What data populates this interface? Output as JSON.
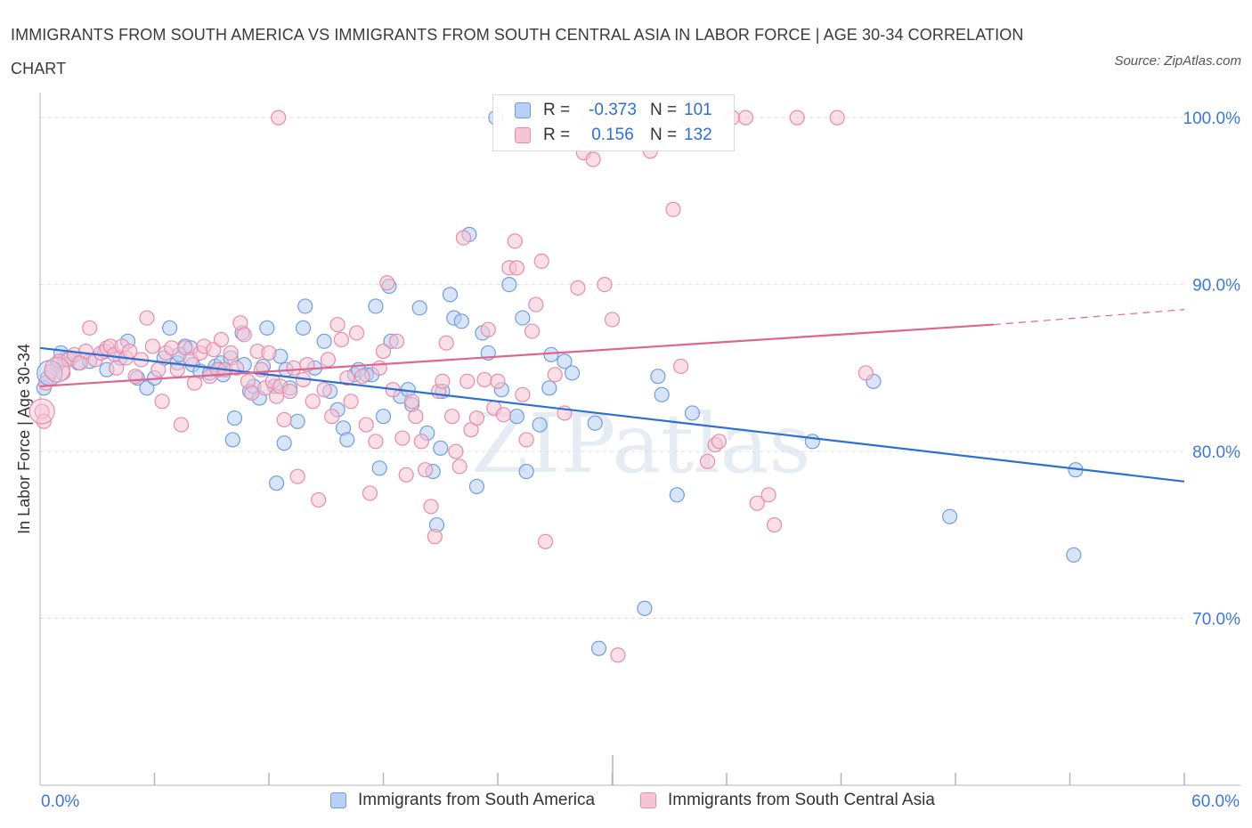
{
  "title": "IMMIGRANTS FROM SOUTH AMERICA VS IMMIGRANTS FROM SOUTH CENTRAL ASIA IN LABOR FORCE | AGE 30-34 CORRELATION CHART",
  "source": "Source: ZipAtlas.com",
  "watermark": "ZIPatlas",
  "colors": {
    "blue_fill": "#b8d0f3",
    "blue_stroke": "#6f9de0",
    "blue_line": "#2e6fd3",
    "pink_fill": "#f6c4d4",
    "pink_stroke": "#e98aaa",
    "pink_line": "#e0648f",
    "axis_text": "#3b78d8",
    "grid": "#dcdcdc"
  },
  "stats_box": {
    "rows": [
      {
        "r_label": "R =",
        "r_value": "-0.373",
        "n_label": "N =",
        "n_value": "101",
        "color": "blue"
      },
      {
        "r_label": "R =",
        "r_value": "0.156",
        "n_label": "N =",
        "n_value": "132",
        "color": "pink"
      }
    ]
  },
  "chart_data": {
    "type": "scatter",
    "title": "IMMIGRANTS FROM SOUTH AMERICA VS IMMIGRANTS FROM SOUTH CENTRAL ASIA IN LABOR FORCE | AGE 30-34 CORRELATION CHART",
    "xlabel": "",
    "ylabel": "In Labor Force | Age 30-34",
    "xlim": [
      0,
      60
    ],
    "ylim": [
      60,
      101.5
    ],
    "x_tick_labels": [
      "0.0%",
      "60.0%"
    ],
    "y_ticks": [
      70,
      80,
      90,
      100
    ],
    "y_tick_labels": [
      "70.0%",
      "80.0%",
      "90.0%",
      "100.0%"
    ],
    "grid": true,
    "legend_position": "bottom",
    "series": [
      {
        "name": "Immigrants from South America",
        "color": "blue",
        "r": -0.373,
        "n": 101,
        "trend": {
          "x0": 0,
          "y0": 86.2,
          "x1": 60,
          "y1": 78.2
        },
        "points": [
          [
            0.4,
            84.4
          ],
          [
            0.9,
            85.2
          ],
          [
            1.3,
            85.5
          ],
          [
            1.6,
            85.6
          ],
          [
            2.0,
            85.3
          ],
          [
            2.6,
            85.4
          ],
          [
            3.4,
            86.0
          ],
          [
            3.5,
            84.9
          ],
          [
            4.2,
            85.6
          ],
          [
            4.6,
            86.6
          ],
          [
            5.1,
            84.4
          ],
          [
            5.6,
            83.8
          ],
          [
            6.0,
            84.4
          ],
          [
            6.5,
            85.6
          ],
          [
            6.8,
            87.4
          ],
          [
            7.2,
            85.3
          ],
          [
            7.6,
            86.3
          ],
          [
            7.9,
            86.2
          ],
          [
            8.0,
            85.2
          ],
          [
            8.4,
            84.8
          ],
          [
            8.9,
            84.7
          ],
          [
            9.2,
            85.1
          ],
          [
            9.5,
            85.3
          ],
          [
            9.4,
            84.9
          ],
          [
            9.6,
            84.6
          ],
          [
            10.0,
            85.6
          ],
          [
            10.1,
            80.7
          ],
          [
            10.2,
            82.0
          ],
          [
            10.6,
            87.1
          ],
          [
            11.0,
            83.6
          ],
          [
            11.2,
            83.9
          ],
          [
            11.5,
            83.2
          ],
          [
            11.7,
            85.1
          ],
          [
            11.9,
            87.4
          ],
          [
            12.3,
            83.9
          ],
          [
            12.4,
            78.1
          ],
          [
            12.6,
            85.7
          ],
          [
            12.9,
            84.9
          ],
          [
            12.8,
            80.5
          ],
          [
            13.1,
            83.8
          ],
          [
            13.5,
            81.8
          ],
          [
            13.8,
            87.4
          ],
          [
            13.9,
            88.7
          ],
          [
            14.4,
            85.0
          ],
          [
            14.9,
            86.6
          ],
          [
            15.2,
            83.6
          ],
          [
            15.6,
            82.5
          ],
          [
            15.9,
            81.4
          ],
          [
            16.1,
            80.7
          ],
          [
            16.5,
            84.6
          ],
          [
            16.7,
            84.9
          ],
          [
            17.1,
            84.6
          ],
          [
            17.4,
            84.6
          ],
          [
            17.6,
            88.7
          ],
          [
            17.8,
            79.0
          ],
          [
            18.0,
            82.1
          ],
          [
            18.3,
            89.9
          ],
          [
            18.4,
            86.6
          ],
          [
            18.9,
            83.3
          ],
          [
            19.3,
            83.7
          ],
          [
            19.5,
            82.8
          ],
          [
            19.9,
            88.6
          ],
          [
            20.3,
            81.1
          ],
          [
            20.6,
            78.8
          ],
          [
            20.8,
            75.6
          ],
          [
            21.0,
            80.2
          ],
          [
            21.1,
            83.6
          ],
          [
            21.5,
            89.4
          ],
          [
            21.7,
            88.0
          ],
          [
            22.5,
            93.0
          ],
          [
            22.9,
            77.9
          ],
          [
            23.2,
            87.1
          ],
          [
            23.5,
            85.9
          ],
          [
            23.9,
            100.0
          ],
          [
            24.2,
            83.7
          ],
          [
            24.6,
            90.0
          ],
          [
            25.0,
            82.1
          ],
          [
            25.3,
            88.0
          ],
          [
            25.5,
            78.8
          ],
          [
            26.2,
            81.6
          ],
          [
            26.7,
            83.8
          ],
          [
            26.8,
            85.8
          ],
          [
            27.5,
            85.4
          ],
          [
            27.9,
            84.7
          ],
          [
            29.1,
            81.7
          ],
          [
            29.3,
            68.2
          ],
          [
            31.7,
            70.6
          ],
          [
            32.4,
            84.5
          ],
          [
            32.6,
            83.4
          ],
          [
            33.4,
            77.4
          ],
          [
            34.2,
            82.3
          ],
          [
            40.5,
            80.6
          ],
          [
            43.7,
            84.2
          ],
          [
            47.7,
            76.1
          ],
          [
            54.3,
            78.9
          ],
          [
            54.2,
            73.8
          ],
          [
            0.2,
            83.8
          ],
          [
            1.1,
            85.9
          ],
          [
            7.3,
            85.8
          ],
          [
            10.7,
            85.2
          ],
          [
            22.1,
            87.8
          ]
        ]
      },
      {
        "name": "Immigrants from South Central Asia",
        "color": "pink",
        "r": 0.156,
        "n": 132,
        "trend": {
          "x0": 0,
          "y0": 83.9,
          "x1": 50,
          "y1": 87.6
        },
        "trend_dashed": {
          "x0": 50,
          "y0": 87.6,
          "x1": 60,
          "y1": 88.5
        },
        "points": [
          [
            0.1,
            82.4
          ],
          [
            0.2,
            81.8
          ],
          [
            0.3,
            84.1
          ],
          [
            0.6,
            84.8
          ],
          [
            1.0,
            85.4
          ],
          [
            1.2,
            84.7
          ],
          [
            1.5,
            85.5
          ],
          [
            1.8,
            85.8
          ],
          [
            2.1,
            85.3
          ],
          [
            2.4,
            86.0
          ],
          [
            2.6,
            87.4
          ],
          [
            2.9,
            85.5
          ],
          [
            3.2,
            85.9
          ],
          [
            3.5,
            86.2
          ],
          [
            3.7,
            86.3
          ],
          [
            3.9,
            85.8
          ],
          [
            4.0,
            85.0
          ],
          [
            4.3,
            86.3
          ],
          [
            4.5,
            85.6
          ],
          [
            4.7,
            86.0
          ],
          [
            5.0,
            84.5
          ],
          [
            5.3,
            85.5
          ],
          [
            5.6,
            88.0
          ],
          [
            5.9,
            86.3
          ],
          [
            6.2,
            84.9
          ],
          [
            6.4,
            83.0
          ],
          [
            6.6,
            85.9
          ],
          [
            6.9,
            86.2
          ],
          [
            7.2,
            84.9
          ],
          [
            7.4,
            81.6
          ],
          [
            7.6,
            86.2
          ],
          [
            7.9,
            85.5
          ],
          [
            8.1,
            84.1
          ],
          [
            8.4,
            85.9
          ],
          [
            8.6,
            86.3
          ],
          [
            8.9,
            84.5
          ],
          [
            9.1,
            86.1
          ],
          [
            9.3,
            84.9
          ],
          [
            9.5,
            86.7
          ],
          [
            9.7,
            84.9
          ],
          [
            10.0,
            85.9
          ],
          [
            10.3,
            85.0
          ],
          [
            10.5,
            87.7
          ],
          [
            10.7,
            87.0
          ],
          [
            10.9,
            84.2
          ],
          [
            11.1,
            83.5
          ],
          [
            11.4,
            86.0
          ],
          [
            11.6,
            84.9
          ],
          [
            11.8,
            83.8
          ],
          [
            12.0,
            85.9
          ],
          [
            12.2,
            84.2
          ],
          [
            12.4,
            83.3
          ],
          [
            12.6,
            83.9
          ],
          [
            12.8,
            81.9
          ],
          [
            13.1,
            83.6
          ],
          [
            13.3,
            85.0
          ],
          [
            13.5,
            78.5
          ],
          [
            13.8,
            84.3
          ],
          [
            14.0,
            85.2
          ],
          [
            14.3,
            83.0
          ],
          [
            14.6,
            77.1
          ],
          [
            14.9,
            83.7
          ],
          [
            15.1,
            85.5
          ],
          [
            15.3,
            82.1
          ],
          [
            15.6,
            87.6
          ],
          [
            15.8,
            86.7
          ],
          [
            16.1,
            84.4
          ],
          [
            16.3,
            83.0
          ],
          [
            16.6,
            87.1
          ],
          [
            16.9,
            84.5
          ],
          [
            17.1,
            81.6
          ],
          [
            17.3,
            77.5
          ],
          [
            17.6,
            80.6
          ],
          [
            17.8,
            85.0
          ],
          [
            18.0,
            86.0
          ],
          [
            18.2,
            90.1
          ],
          [
            18.5,
            83.7
          ],
          [
            18.7,
            86.6
          ],
          [
            19.0,
            80.8
          ],
          [
            19.2,
            78.6
          ],
          [
            19.5,
            83.0
          ],
          [
            19.7,
            82.1
          ],
          [
            20.0,
            80.6
          ],
          [
            20.2,
            78.9
          ],
          [
            20.5,
            76.7
          ],
          [
            20.7,
            74.9
          ],
          [
            20.9,
            83.6
          ],
          [
            21.1,
            84.2
          ],
          [
            21.3,
            86.5
          ],
          [
            21.6,
            82.1
          ],
          [
            21.8,
            80.0
          ],
          [
            22.0,
            79.1
          ],
          [
            22.2,
            92.8
          ],
          [
            22.4,
            84.2
          ],
          [
            22.6,
            81.3
          ],
          [
            22.9,
            82.0
          ],
          [
            23.3,
            84.3
          ],
          [
            23.5,
            87.3
          ],
          [
            23.8,
            82.6
          ],
          [
            24.0,
            84.2
          ],
          [
            24.3,
            82.2
          ],
          [
            24.6,
            91.0
          ],
          [
            24.9,
            92.6
          ],
          [
            25.0,
            91.0
          ],
          [
            25.3,
            83.4
          ],
          [
            25.5,
            80.7
          ],
          [
            25.8,
            87.2
          ],
          [
            26.0,
            88.8
          ],
          [
            26.3,
            91.4
          ],
          [
            26.5,
            74.6
          ],
          [
            27.0,
            84.6
          ],
          [
            27.5,
            82.3
          ],
          [
            28.2,
            89.8
          ],
          [
            28.5,
            97.9
          ],
          [
            29.0,
            97.5
          ],
          [
            29.6,
            90.0
          ],
          [
            30.0,
            87.9
          ],
          [
            30.3,
            67.8
          ],
          [
            32.0,
            98.0
          ],
          [
            33.2,
            94.5
          ],
          [
            33.6,
            85.1
          ],
          [
            35.0,
            79.4
          ],
          [
            35.4,
            80.4
          ],
          [
            35.6,
            80.6
          ],
          [
            36.3,
            100.0
          ],
          [
            37.0,
            100.0
          ],
          [
            37.6,
            76.9
          ],
          [
            38.2,
            77.4
          ],
          [
            38.5,
            75.6
          ],
          [
            39.7,
            100.0
          ],
          [
            41.8,
            100.0
          ],
          [
            43.3,
            84.7
          ],
          [
            28.8,
            100.0
          ],
          [
            30.0,
            100.0
          ],
          [
            34.0,
            100.0
          ],
          [
            32.7,
            100.0
          ],
          [
            12.5,
            100.0
          ]
        ]
      }
    ]
  },
  "legend": [
    {
      "label": "Immigrants from South America",
      "color": "blue"
    },
    {
      "label": "Immigrants from South Central Asia",
      "color": "pink"
    }
  ],
  "x_axis": {
    "left_label": "0.0%",
    "right_label": "60.0%"
  }
}
